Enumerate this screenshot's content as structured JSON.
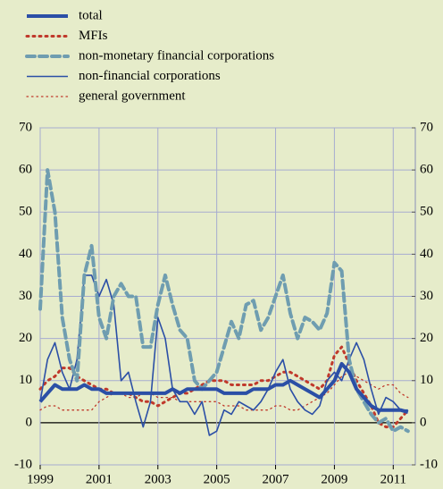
{
  "chart_data": {
    "type": "line",
    "x": [
      1999,
      1999.25,
      1999.5,
      1999.75,
      2000,
      2000.25,
      2000.5,
      2000.75,
      2001,
      2001.25,
      2001.5,
      2001.75,
      2002,
      2002.25,
      2002.5,
      2002.75,
      2003,
      2003.25,
      2003.5,
      2003.75,
      2004,
      2004.25,
      2004.5,
      2004.75,
      2005,
      2005.25,
      2005.5,
      2005.75,
      2006,
      2006.25,
      2006.5,
      2006.75,
      2007,
      2007.25,
      2007.5,
      2007.75,
      2008,
      2008.25,
      2008.5,
      2008.75,
      2009,
      2009.25,
      2009.5,
      2009.75,
      2010,
      2010.25,
      2010.5,
      2010.75,
      2011,
      2011.25,
      2011.5
    ],
    "series": [
      {
        "name": "total",
        "color": "#2b4fa6",
        "width": 4,
        "dash": "none",
        "values": [
          5,
          7,
          9,
          8,
          8,
          8,
          9,
          8,
          8,
          7,
          7,
          7,
          7,
          7,
          7,
          7,
          7,
          7,
          8,
          7,
          8,
          8,
          8,
          8,
          8,
          7,
          7,
          7,
          7,
          8,
          8,
          8,
          9,
          9,
          10,
          9,
          8,
          7,
          6,
          8,
          10,
          14,
          12,
          8,
          6,
          4,
          3,
          3,
          3,
          3,
          2.5
        ]
      },
      {
        "name": "MFIs",
        "color": "#c0392b",
        "width": 3,
        "dash": "2 5",
        "values": [
          8,
          10,
          11,
          13,
          13,
          11,
          10,
          9,
          8,
          8,
          7,
          7,
          7,
          6,
          5,
          5,
          4,
          5,
          6,
          7,
          7,
          8,
          9,
          10,
          10,
          10,
          9,
          9,
          9,
          9,
          10,
          10,
          11,
          12,
          12,
          11,
          10,
          9,
          8,
          10,
          16,
          18,
          14,
          10,
          7,
          4,
          0,
          -1,
          -1,
          1,
          3
        ]
      },
      {
        "name": "non-monetary financial corporations",
        "color": "#6f9db0",
        "width": 4,
        "dash": "9 5",
        "values": [
          27,
          60,
          50,
          25,
          15,
          10,
          35,
          42,
          25,
          20,
          30,
          33,
          30,
          30,
          18,
          18,
          28,
          35,
          28,
          22,
          20,
          10,
          8,
          10,
          12,
          18,
          24,
          20,
          28,
          29,
          22,
          25,
          30,
          35,
          26,
          20,
          25,
          24,
          22,
          26,
          38,
          36,
          15,
          8,
          5,
          2,
          0,
          1,
          -2,
          -1,
          -2
        ]
      },
      {
        "name": "non-financial corporations",
        "color": "#2b4fa6",
        "width": 1.6,
        "dash": "none",
        "values": [
          5,
          15,
          19,
          12,
          8,
          15,
          35,
          35,
          30,
          34,
          28,
          10,
          12,
          5,
          -1,
          5,
          25,
          20,
          8,
          5,
          5,
          2,
          5,
          -3,
          -2,
          3,
          2,
          5,
          4,
          3,
          5,
          8,
          12,
          15,
          8,
          5,
          3,
          2,
          4,
          10,
          12,
          10,
          15,
          19,
          15,
          8,
          2,
          6,
          5,
          3,
          3
        ]
      },
      {
        "name": "general government",
        "color": "#c0392b",
        "width": 1.3,
        "dash": "1.5 4",
        "values": [
          3,
          4,
          4,
          3,
          3,
          3,
          3,
          3,
          5,
          6,
          7,
          7,
          6,
          6,
          7,
          7,
          6,
          6,
          6,
          5,
          5,
          5,
          5,
          5,
          5,
          4,
          4,
          4,
          3,
          3,
          3,
          3,
          4,
          4,
          3,
          3,
          4,
          5,
          6,
          7,
          9,
          11,
          12,
          11,
          10,
          9,
          8,
          9,
          9,
          7,
          6
        ]
      }
    ],
    "xlim": [
      1999,
      2011.75
    ],
    "xticks": [
      1999,
      2001,
      2003,
      2005,
      2007,
      2009,
      2011
    ],
    "ylim": [
      -10,
      70
    ],
    "yticks": [
      -10,
      0,
      10,
      20,
      30,
      40,
      50,
      60,
      70
    ],
    "y2lim": [
      -10,
      70
    ],
    "y2ticks": [
      -10,
      0,
      10,
      20,
      30,
      40,
      50,
      60,
      70
    ],
    "grid": true,
    "legend": "top-left"
  }
}
